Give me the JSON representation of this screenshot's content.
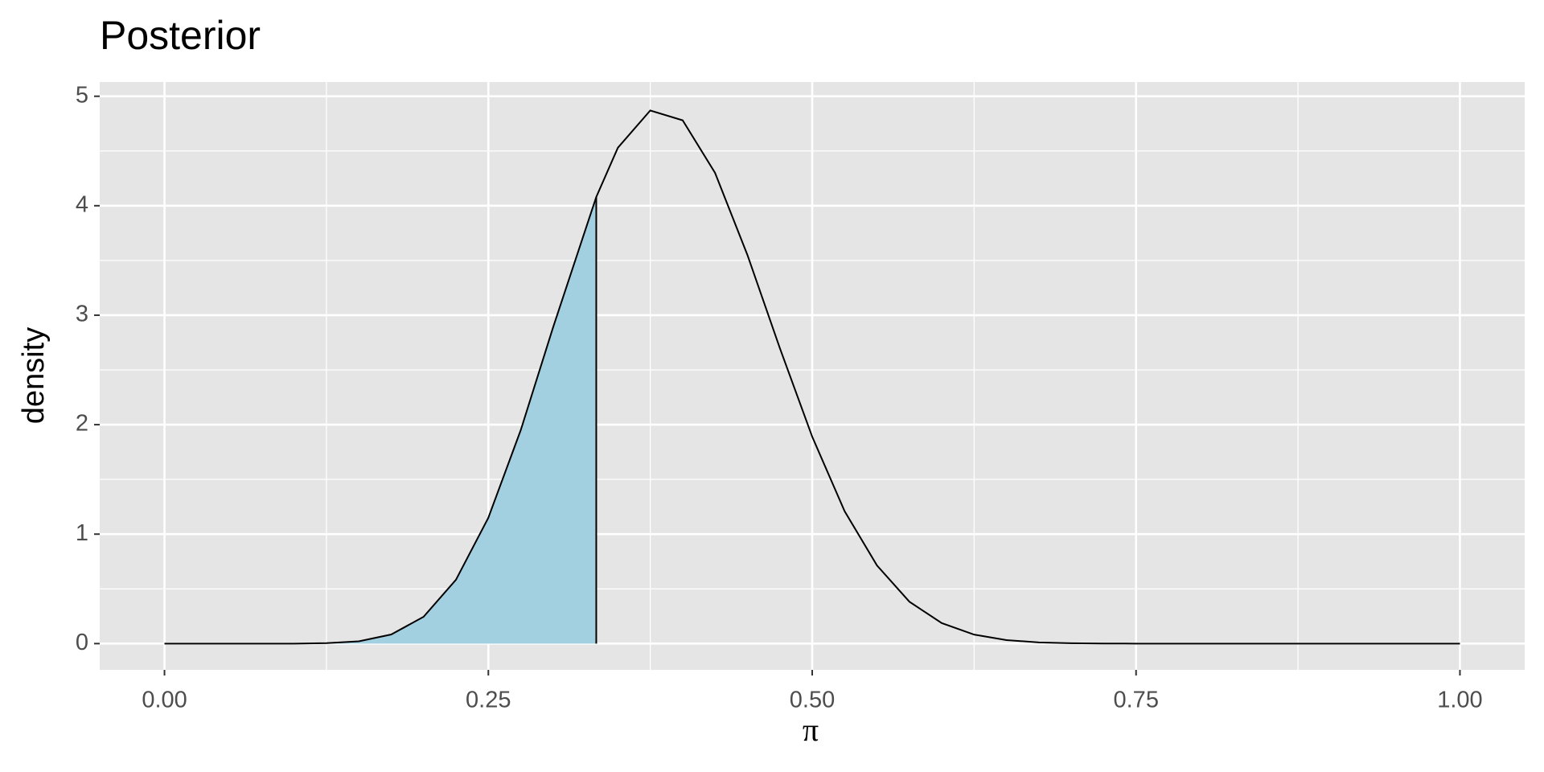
{
  "chart_data": {
    "type": "area",
    "title": "Posterior",
    "x_label": "π",
    "y_label": "density",
    "x": [
      0,
      0.025,
      0.05,
      0.075,
      0.1,
      0.125,
      0.15,
      0.175,
      0.2,
      0.225,
      0.25,
      0.275,
      0.3,
      0.3333,
      0.35,
      0.375,
      0.4,
      0.425,
      0.45,
      0.475,
      0.5,
      0.525,
      0.55,
      0.575,
      0.6,
      0.625,
      0.65,
      0.675,
      0.7,
      0.725,
      0.75,
      0.775,
      0.8,
      0.825,
      0.85,
      0.875,
      0.9,
      0.925,
      0.95,
      0.975,
      1
    ],
    "values": [
      0,
      0,
      0,
      0,
      0,
      0.004,
      0.021,
      0.083,
      0.245,
      0.583,
      1.15,
      1.95,
      2.89,
      4.08,
      4.53,
      4.87,
      4.78,
      4.3,
      3.55,
      2.7,
      1.89,
      1.21,
      0.714,
      0.383,
      0.187,
      0.082,
      0.032,
      0.011,
      0.003,
      0.001,
      0,
      0,
      0,
      0,
      0,
      0,
      0,
      0,
      0,
      0,
      0
    ],
    "shade_to": 0.3333,
    "fill_color": "#a2d0e1",
    "line_color": "#000000",
    "xlim": [
      -0.05,
      1.05
    ],
    "ylim": [
      -0.24,
      5.13
    ],
    "xticks": [
      {
        "value": 0,
        "label": "0.00"
      },
      {
        "value": 0.25,
        "label": "0.25"
      },
      {
        "value": 0.5,
        "label": "0.50"
      },
      {
        "value": 0.75,
        "label": "0.75"
      },
      {
        "value": 1,
        "label": "1.00"
      }
    ],
    "yticks": [
      0,
      1,
      2,
      3,
      4,
      5
    ],
    "minor_xticks": [
      0.125,
      0.375,
      0.625,
      0.875
    ],
    "minor_yticks": [
      0.5,
      1.5,
      2.5,
      3.5,
      4.5
    ],
    "grid": true
  }
}
